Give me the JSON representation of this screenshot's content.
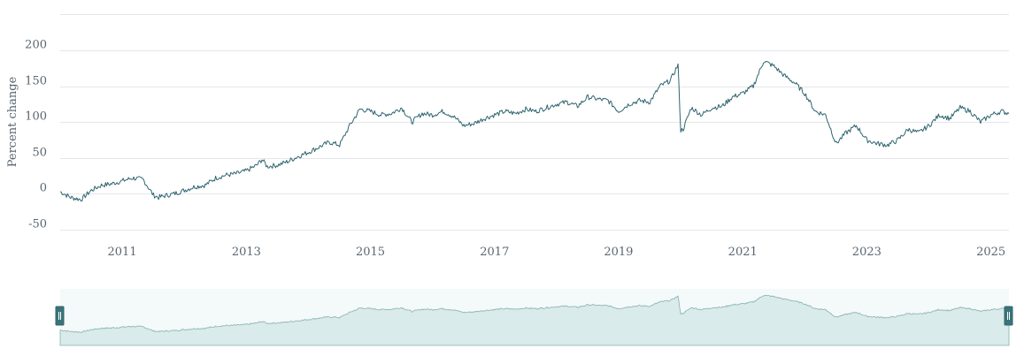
{
  "chart_data": {
    "type": "line",
    "ylabel": "Percent change",
    "ylim": [
      -50,
      200
    ],
    "yticks": [
      -50,
      0,
      50,
      100,
      150,
      200
    ],
    "xlim": [
      "2010-07-01",
      "2025-10-15"
    ],
    "xticks": [
      "2011",
      "2013",
      "2015",
      "2017",
      "2019",
      "2021",
      "2023",
      "2025"
    ],
    "grid": true,
    "legend": "none",
    "colors": {
      "line": "#2e6470",
      "navigator_fill": "#d9ebea",
      "handle": "#3a7478"
    },
    "series": [
      {
        "x": [
          "2010-07-01",
          "2010-09-01",
          "2010-11-01",
          "2011-01-01",
          "2011-03-01",
          "2011-05-01",
          "2011-07-01",
          "2011-09-01",
          "2011-11-01",
          "2012-01-01",
          "2012-02-01",
          "2012-03-01",
          "2012-05-01",
          "2012-07-01",
          "2012-09-01",
          "2012-11-01",
          "2013-01-01",
          "2013-03-01",
          "2013-05-01",
          "2013-07-01",
          "2013-09-01",
          "2013-10-01",
          "2013-11-01",
          "2014-01-01",
          "2014-03-01",
          "2014-05-01",
          "2014-07-01",
          "2014-09-01",
          "2014-11-01",
          "2015-01-01",
          "2015-03-01",
          "2015-05-01",
          "2015-07-01",
          "2015-09-01",
          "2015-11-01",
          "2016-01-01",
          "2016-03-01",
          "2016-05-01",
          "2016-07-01",
          "2016-09-01",
          "2016-11-01",
          "2017-01-01",
          "2017-03-01",
          "2017-05-01",
          "2017-07-01",
          "2017-09-01",
          "2017-11-01",
          "2018-01-01",
          "2018-03-01",
          "2018-05-01",
          "2018-07-01",
          "2018-09-01",
          "2018-11-01",
          "2019-01-01",
          "2019-03-01",
          "2019-05-01",
          "2019-07-01",
          "2019-09-01",
          "2019-11-01",
          "2020-01-01",
          "2020-03-01",
          "2020-05-01",
          "2020-06-15",
          "2020-07-01",
          "2020-07-15",
          "2020-09-01",
          "2020-11-01",
          "2021-01-01",
          "2021-03-01",
          "2021-05-01",
          "2021-07-01",
          "2021-09-01",
          "2021-11-01",
          "2022-01-01",
          "2022-03-01",
          "2022-05-01",
          "2022-07-01",
          "2022-09-01",
          "2022-11-01",
          "2023-01-01",
          "2023-03-01",
          "2023-05-01",
          "2023-07-01",
          "2023-09-01",
          "2023-11-01",
          "2024-01-01",
          "2024-03-01",
          "2024-05-01",
          "2024-07-01",
          "2024-09-01",
          "2024-11-01",
          "2025-01-01",
          "2025-03-01",
          "2025-05-01",
          "2025-07-01",
          "2025-09-01",
          "2025-10-15"
        ],
        "y": [
          3,
          -5,
          -8,
          5,
          12,
          14,
          18,
          22,
          20,
          -2,
          -5,
          -3,
          0,
          5,
          10,
          12,
          22,
          26,
          28,
          32,
          40,
          48,
          38,
          40,
          45,
          52,
          58,
          65,
          72,
          68,
          95,
          118,
          115,
          110,
          112,
          120,
          100,
          112,
          110,
          115,
          108,
          95,
          98,
          105,
          110,
          115,
          112,
          118,
          115,
          120,
          125,
          128,
          122,
          135,
          132,
          130,
          115,
          125,
          130,
          128,
          150,
          158,
          180,
          88,
          90,
          120,
          110,
          120,
          122,
          135,
          140,
          150,
          185,
          178,
          165,
          155,
          140,
          115,
          110,
          70,
          85,
          95,
          75,
          70,
          68,
          75,
          90,
          85,
          95,
          110,
          105,
          120,
          115,
          100,
          110,
          115,
          112
        ]
      }
    ]
  }
}
